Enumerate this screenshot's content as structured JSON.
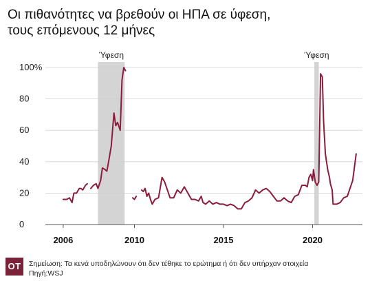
{
  "title_line1": "Οι πιθανότητες να βρεθούν οι ΗΠΑ σε ύφεση,",
  "title_line2": "τους επόμενους 12 μήνες",
  "footer": {
    "logo_text": "OT",
    "note": "Σημείωση: Τα κενά υποδηλώνουν ότι δεν τέθηκε το ερώτημα ή ότι δεν υπήρχαν στοιχεία",
    "source": "Πηγή:WSJ"
  },
  "colors": {
    "line": "#8b1c3c",
    "recession": "#d4d4d4",
    "logo": "#7a2238"
  },
  "chart_data": {
    "type": "line",
    "title": "Οι πιθανότητες να βρεθούν οι ΗΠΑ σε ύφεση, τους επόμενους 12 μήνες",
    "xlim": [
      2005,
      2022.8
    ],
    "ylim": [
      0,
      100
    ],
    "y_ticks": [
      {
        "value": 0,
        "label": "0"
      },
      {
        "value": 20,
        "label": "20"
      },
      {
        "value": 40,
        "label": "40"
      },
      {
        "value": 60,
        "label": "60"
      },
      {
        "value": 80,
        "label": "80"
      },
      {
        "value": 100,
        "label": "100%"
      }
    ],
    "x_ticks": [
      {
        "value": 2006,
        "label": "2006"
      },
      {
        "value": 2010,
        "label": "2010"
      },
      {
        "value": 2015,
        "label": "2015"
      },
      {
        "value": 2020,
        "label": "2020"
      }
    ],
    "grid": "horizontal",
    "recessions": [
      {
        "start": 2007.95,
        "end": 2009.45,
        "label": "Ύφεση"
      },
      {
        "start": 2020.1,
        "end": 2020.35,
        "label": "Ύφεση"
      }
    ],
    "segments": [
      [
        [
          2006.0,
          16
        ],
        [
          2006.2,
          16
        ],
        [
          2006.35,
          17
        ],
        [
          2006.5,
          14
        ],
        [
          2006.6,
          20
        ],
        [
          2006.75,
          20
        ],
        [
          2006.9,
          23
        ],
        [
          2007.0,
          23
        ],
        [
          2007.1,
          22
        ],
        [
          2007.25,
          25
        ],
        [
          2007.35,
          26
        ]
      ],
      [
        [
          2007.55,
          23
        ],
        [
          2007.7,
          25
        ],
        [
          2007.85,
          26
        ],
        [
          2007.95,
          23
        ],
        [
          2008.1,
          28
        ],
        [
          2008.2,
          36
        ],
        [
          2008.35,
          35
        ],
        [
          2008.45,
          34
        ],
        [
          2008.55,
          40
        ],
        [
          2008.7,
          50
        ],
        [
          2008.85,
          71
        ],
        [
          2008.95,
          63
        ],
        [
          2009.05,
          65
        ],
        [
          2009.2,
          60
        ],
        [
          2009.3,
          92
        ],
        [
          2009.4,
          100
        ],
        [
          2009.5,
          98
        ]
      ],
      [
        [
          2009.9,
          17
        ],
        [
          2010.0,
          16
        ],
        [
          2010.1,
          18
        ]
      ],
      [
        [
          2010.4,
          22
        ],
        [
          2010.5,
          21
        ],
        [
          2010.6,
          23
        ],
        [
          2010.7,
          18
        ],
        [
          2010.8,
          20
        ],
        [
          2010.9,
          16
        ],
        [
          2011.0,
          13
        ],
        [
          2011.15,
          16
        ],
        [
          2011.35,
          17
        ],
        [
          2011.55,
          30
        ],
        [
          2011.7,
          27
        ],
        [
          2011.85,
          22
        ],
        [
          2012.0,
          17
        ],
        [
          2012.2,
          17
        ],
        [
          2012.4,
          22
        ],
        [
          2012.6,
          20
        ],
        [
          2012.8,
          24
        ],
        [
          2013.0,
          20
        ],
        [
          2013.2,
          16
        ],
        [
          2013.4,
          16
        ],
        [
          2013.6,
          15
        ],
        [
          2013.75,
          18
        ],
        [
          2013.85,
          14
        ],
        [
          2014.0,
          13
        ],
        [
          2014.2,
          15
        ],
        [
          2014.4,
          13
        ],
        [
          2014.6,
          14
        ],
        [
          2014.8,
          13
        ],
        [
          2015.0,
          13
        ],
        [
          2015.2,
          12
        ],
        [
          2015.4,
          13
        ],
        [
          2015.6,
          12
        ],
        [
          2015.8,
          10
        ],
        [
          2016.0,
          10
        ],
        [
          2016.2,
          14
        ],
        [
          2016.4,
          15
        ],
        [
          2016.6,
          17
        ],
        [
          2016.8,
          22
        ],
        [
          2017.0,
          20
        ],
        [
          2017.2,
          22
        ],
        [
          2017.4,
          23
        ],
        [
          2017.6,
          21
        ],
        [
          2017.8,
          18
        ],
        [
          2018.0,
          15
        ],
        [
          2018.2,
          15
        ],
        [
          2018.4,
          17
        ],
        [
          2018.6,
          15
        ],
        [
          2018.8,
          14
        ],
        [
          2019.0,
          18
        ],
        [
          2019.2,
          19
        ],
        [
          2019.4,
          25
        ],
        [
          2019.6,
          25
        ],
        [
          2019.7,
          24
        ],
        [
          2019.8,
          30
        ],
        [
          2019.9,
          32
        ],
        [
          2020.0,
          28
        ],
        [
          2020.05,
          35
        ],
        [
          2020.15,
          27
        ],
        [
          2020.25,
          25
        ],
        [
          2020.35,
          27
        ],
        [
          2020.45,
          96
        ],
        [
          2020.55,
          94
        ],
        [
          2020.62,
          66
        ],
        [
          2020.72,
          45
        ],
        [
          2020.85,
          35
        ],
        [
          2020.95,
          30
        ],
        [
          2021.0,
          26
        ],
        [
          2021.1,
          22
        ],
        [
          2021.15,
          13
        ],
        [
          2021.35,
          13
        ],
        [
          2021.55,
          14
        ],
        [
          2021.75,
          17
        ],
        [
          2021.95,
          18
        ],
        [
          2022.1,
          23
        ],
        [
          2022.25,
          28
        ],
        [
          2022.45,
          45
        ]
      ]
    ]
  }
}
